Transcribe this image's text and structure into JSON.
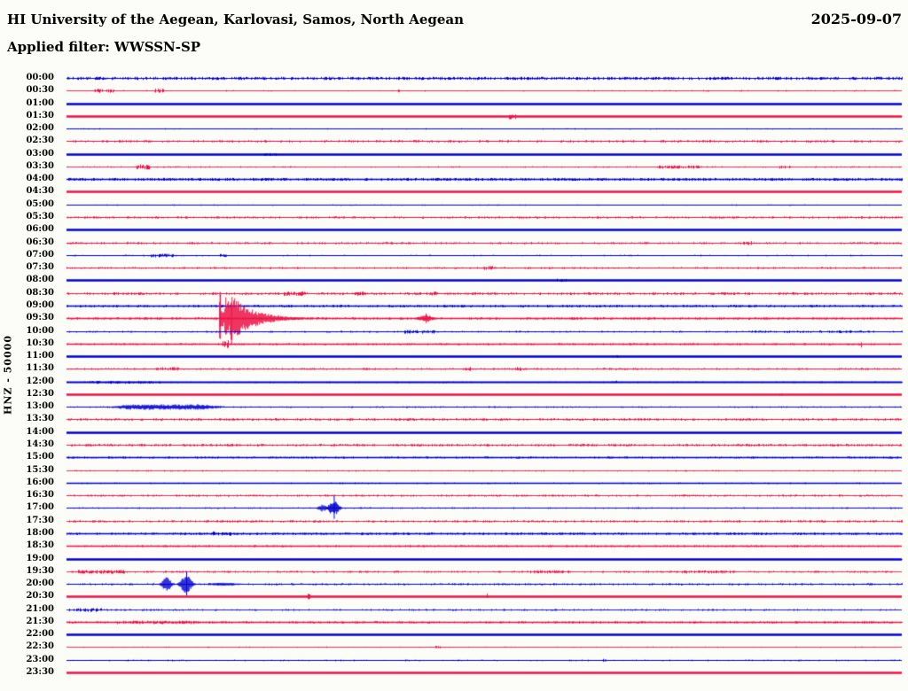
{
  "header": {
    "station_title": "HI University of the Aegean, Karlovasi, Samos, North Aegean",
    "date": "2025-09-07",
    "filter_label": "Applied filter: WWSSN-SP",
    "channel_scale_label": "HNZ - 50000"
  },
  "colors": {
    "trace_blue": "#0000d2",
    "trace_red": "#ed1247",
    "text": "#000000",
    "background": "#fcfcf9"
  },
  "chart_data": {
    "type": "helicorder",
    "title": "HI University of the Aegean, Karlovasi, Samos, North Aegean",
    "date": "2025-09-07",
    "filter": "WWSSN-SP",
    "channel": "HNZ",
    "trace_scale": 50000,
    "minutes_per_row": 30,
    "rows_per_day": 48,
    "first_row": "00:00",
    "last_row": "23:30",
    "row_color_alternation": [
      "blue",
      "red"
    ],
    "events": [
      {
        "row": "09:30",
        "approx_time": "09:35",
        "amplitude": "very large (clipped, spans several rows)",
        "coda_minutes": 3.5,
        "trace_color": "red"
      },
      {
        "row": "09:30",
        "approx_time": "09:43",
        "amplitude": "small aftershock burst",
        "trace_color": "red"
      },
      {
        "row": "13:00",
        "approx_time": "13:01-13:06",
        "amplitude": "minor tremor / elevated noise",
        "trace_color": "blue"
      },
      {
        "row": "17:00",
        "approx_time": "17:09",
        "amplitude": "moderate burst",
        "trace_color": "blue"
      },
      {
        "row": "20:00",
        "approx_time": "20:04",
        "amplitude": "moderate double burst",
        "trace_color": "blue"
      }
    ],
    "rows": [
      {
        "t": "00:00",
        "c": "b",
        "w": 1.2,
        "n": [
          1.5,
          0.55
        ]
      },
      {
        "t": "00:30",
        "c": "r",
        "w": 0.9,
        "n": [
          0.8,
          0.07
        ],
        "cl": [
          [
            1.0,
            1.7,
            2.0,
            0.45
          ],
          [
            3.2,
            3.5,
            2.0,
            0.4
          ],
          [
            11.8,
            12.0,
            1.5,
            0.3
          ]
        ]
      },
      {
        "t": "01:00",
        "c": "b",
        "w": 2.7,
        "n": [
          0.5,
          0.03
        ]
      },
      {
        "t": "01:30",
        "c": "r",
        "w": 2.7,
        "n": [
          0.5,
          0.02
        ],
        "cl": [
          [
            15.9,
            16.1,
            2.5,
            0.45
          ]
        ]
      },
      {
        "t": "02:00",
        "c": "b",
        "w": 1.0,
        "n": [
          0.7,
          0.06
        ]
      },
      {
        "t": "02:30",
        "c": "r",
        "w": 1.1,
        "n": [
          1.2,
          0.32
        ]
      },
      {
        "t": "03:00",
        "c": "b",
        "w": 2.7,
        "n": [
          0.6,
          0.04
        ],
        "cl": [
          [
            7.1,
            7.5,
            1.4,
            0.5
          ]
        ]
      },
      {
        "t": "03:30",
        "c": "r",
        "w": 0.9,
        "n": [
          0.8,
          0.14
        ],
        "cl": [
          [
            2.5,
            3.0,
            2.4,
            0.6
          ],
          [
            21.2,
            22.8,
            1.6,
            0.5
          ],
          [
            25.5,
            26.0,
            1.6,
            0.5
          ]
        ]
      },
      {
        "t": "04:00",
        "c": "b",
        "w": 1.3,
        "n": [
          1.4,
          0.5
        ]
      },
      {
        "t": "04:30",
        "c": "r",
        "w": 2.7,
        "n": [
          0.4,
          0.02
        ]
      },
      {
        "t": "05:00",
        "c": "b",
        "w": 1.0,
        "n": [
          0.7,
          0.07
        ]
      },
      {
        "t": "05:30",
        "c": "r",
        "w": 1.1,
        "n": [
          1.1,
          0.36
        ]
      },
      {
        "t": "06:00",
        "c": "b",
        "w": 2.7,
        "n": [
          0.5,
          0.03
        ]
      },
      {
        "t": "06:30",
        "c": "r",
        "w": 1.1,
        "n": [
          1.1,
          0.33
        ],
        "cl": [
          [
            24.3,
            24.6,
            2.0,
            0.5
          ]
        ]
      },
      {
        "t": "07:00",
        "c": "b",
        "w": 1.0,
        "n": [
          0.8,
          0.11
        ],
        "cl": [
          [
            3.0,
            3.9,
            1.8,
            0.55
          ],
          [
            5.4,
            5.8,
            1.5,
            0.5
          ]
        ]
      },
      {
        "t": "07:30",
        "c": "r",
        "w": 1.0,
        "n": [
          1.0,
          0.26
        ],
        "cl": [
          [
            15.0,
            15.3,
            2.0,
            0.5
          ]
        ]
      },
      {
        "t": "08:00",
        "c": "b",
        "w": 2.5,
        "n": [
          0.6,
          0.06
        ],
        "cl": [
          [
            17.6,
            18.0,
            1.6,
            0.5
          ]
        ]
      },
      {
        "t": "08:30",
        "c": "r",
        "w": 1.1,
        "n": [
          1.3,
          0.42
        ],
        "cl": [
          [
            7.8,
            8.6,
            2.2,
            0.6
          ],
          [
            10.3,
            10.7,
            2.0,
            0.6
          ],
          [
            12.9,
            13.3,
            2.0,
            0.6
          ]
        ]
      },
      {
        "t": "09:00",
        "c": "b",
        "w": 1.6,
        "n": [
          1.2,
          0.42
        ]
      },
      {
        "t": "09:30",
        "c": "r",
        "w": 1.4,
        "n": [
          1.2,
          0.38
        ],
        "ev": [
          {
            "type": "quake",
            "m": 5.5,
            "amp": 30,
            "dur": 3.4
          },
          {
            "type": "burst",
            "m": 12.9,
            "amp": 4,
            "dur": 0.8,
            "spike": 1.4
          }
        ]
      },
      {
        "t": "10:00",
        "c": "b",
        "w": 1.0,
        "n": [
          0.9,
          0.24
        ],
        "cl": [
          [
            12.1,
            13.2,
            1.8,
            0.6
          ],
          [
            24.6,
            29.0,
            1.2,
            0.35
          ]
        ]
      },
      {
        "t": "10:30",
        "c": "r",
        "w": 1.5,
        "n": [
          1.0,
          0.3
        ],
        "cl": [
          [
            5.6,
            5.8,
            4.0,
            0.7
          ],
          [
            28.5,
            28.7,
            5.0,
            0.35
          ]
        ]
      },
      {
        "t": "11:00",
        "c": "b",
        "w": 2.7,
        "n": [
          0.4,
          0.03
        ],
        "cl": [
          [
            19.5,
            20.1,
            1.2,
            0.4
          ]
        ]
      },
      {
        "t": "11:30",
        "c": "r",
        "w": 1.0,
        "n": [
          1.0,
          0.32
        ],
        "cl": [
          [
            3.2,
            4.0,
            1.8,
            0.55
          ],
          [
            14.2,
            14.5,
            2.0,
            0.5
          ],
          [
            16.1,
            16.4,
            2.0,
            0.5
          ]
        ]
      },
      {
        "t": "12:00",
        "c": "b",
        "w": 1.8,
        "n": [
          0.8,
          0.16
        ],
        "cl": [
          [
            0.8,
            3.4,
            1.4,
            0.5
          ],
          [
            19.6,
            19.9,
            1.5,
            0.45
          ]
        ]
      },
      {
        "t": "12:30",
        "c": "r",
        "w": 2.7,
        "n": [
          0.4,
          0.02
        ],
        "cl": [
          [
            25.6,
            25.8,
            1.5,
            0.35
          ]
        ]
      },
      {
        "t": "13:00",
        "c": "b",
        "w": 1.0,
        "n": [
          0.8,
          0.26
        ],
        "ev": [
          {
            "type": "tremor",
            "m": 1.6,
            "amp": 2.6,
            "dur": 4.2
          }
        ]
      },
      {
        "t": "13:30",
        "c": "r",
        "w": 1.1,
        "n": [
          1.2,
          0.42
        ]
      },
      {
        "t": "14:00",
        "c": "b",
        "w": 2.7,
        "n": [
          0.4,
          0.03
        ]
      },
      {
        "t": "14:30",
        "c": "r",
        "w": 1.0,
        "n": [
          1.2,
          0.44
        ]
      },
      {
        "t": "15:00",
        "c": "b",
        "w": 1.4,
        "n": [
          1.0,
          0.36
        ]
      },
      {
        "t": "15:30",
        "c": "r",
        "w": 0.9,
        "n": [
          0.8,
          0.11
        ]
      },
      {
        "t": "16:00",
        "c": "b",
        "w": 1.4,
        "n": [
          0.8,
          0.13
        ]
      },
      {
        "t": "16:30",
        "c": "r",
        "w": 0.9,
        "n": [
          1.0,
          0.36
        ]
      },
      {
        "t": "17:00",
        "c": "b",
        "w": 1.2,
        "n": [
          0.8,
          0.21
        ],
        "ev": [
          {
            "type": "burst",
            "m": 9.2,
            "amp": 4,
            "dur": 0.5
          },
          {
            "type": "burst",
            "m": 9.6,
            "amp": 9,
            "dur": 0.55,
            "spike": 1.5
          }
        ]
      },
      {
        "t": "17:30",
        "c": "r",
        "w": 0.9,
        "n": [
          1.1,
          0.4
        ]
      },
      {
        "t": "18:00",
        "c": "b",
        "w": 1.4,
        "n": [
          1.2,
          0.42
        ],
        "cl": [
          [
            5.2,
            5.9,
            2.0,
            0.6
          ],
          [
            23.7,
            24.0,
            1.6,
            0.5
          ]
        ]
      },
      {
        "t": "18:30",
        "c": "r",
        "w": 1.3,
        "n": [
          1.0,
          0.32
        ]
      },
      {
        "t": "19:00",
        "c": "b",
        "w": 2.6,
        "n": [
          0.5,
          0.05
        ]
      },
      {
        "t": "19:30",
        "c": "r",
        "w": 0.9,
        "n": [
          1.0,
          0.32
        ],
        "cl": [
          [
            0.4,
            2.1,
            1.8,
            0.6
          ],
          [
            16.6,
            18.1,
            1.5,
            0.5
          ],
          [
            21.9,
            24.1,
            1.4,
            0.5
          ]
        ]
      },
      {
        "t": "20:00",
        "c": "b",
        "w": 1.2,
        "n": [
          1.0,
          0.36
        ],
        "ev": [
          {
            "type": "burst",
            "m": 3.6,
            "amp": 8,
            "dur": 0.5
          },
          {
            "type": "burst",
            "m": 4.3,
            "amp": 11,
            "dur": 0.6,
            "spike": 1.3
          },
          {
            "type": "tremor",
            "m": 4.9,
            "amp": 1.6,
            "dur": 1.6
          }
        ]
      },
      {
        "t": "20:30",
        "c": "r",
        "w": 2.7,
        "n": [
          0.5,
          0.03
        ],
        "cl": [
          [
            8.65,
            8.8,
            3.0,
            0.6
          ],
          [
            14.95,
            15.1,
            3.0,
            0.6
          ]
        ]
      },
      {
        "t": "21:00",
        "c": "b",
        "w": 0.9,
        "n": [
          0.9,
          0.26
        ],
        "cl": [
          [
            0.1,
            1.3,
            1.8,
            0.6
          ]
        ]
      },
      {
        "t": "21:30",
        "c": "r",
        "w": 1.6,
        "n": [
          1.1,
          0.36
        ],
        "cl": [
          [
            1.8,
            4.7,
            1.8,
            0.6
          ]
        ]
      },
      {
        "t": "22:00",
        "c": "b",
        "w": 2.7,
        "n": [
          0.4,
          0.02
        ]
      },
      {
        "t": "22:30",
        "c": "r",
        "w": 0.9,
        "n": [
          0.7,
          0.09
        ],
        "cl": [
          [
            13.2,
            13.4,
            1.5,
            0.45
          ]
        ]
      },
      {
        "t": "23:00",
        "c": "b",
        "w": 1.0,
        "n": [
          0.8,
          0.16
        ],
        "cl": [
          [
            19.2,
            19.4,
            2.0,
            0.45
          ]
        ]
      },
      {
        "t": "23:30",
        "c": "r",
        "w": 2.7,
        "n": [
          0.4,
          0.02
        ]
      }
    ]
  }
}
